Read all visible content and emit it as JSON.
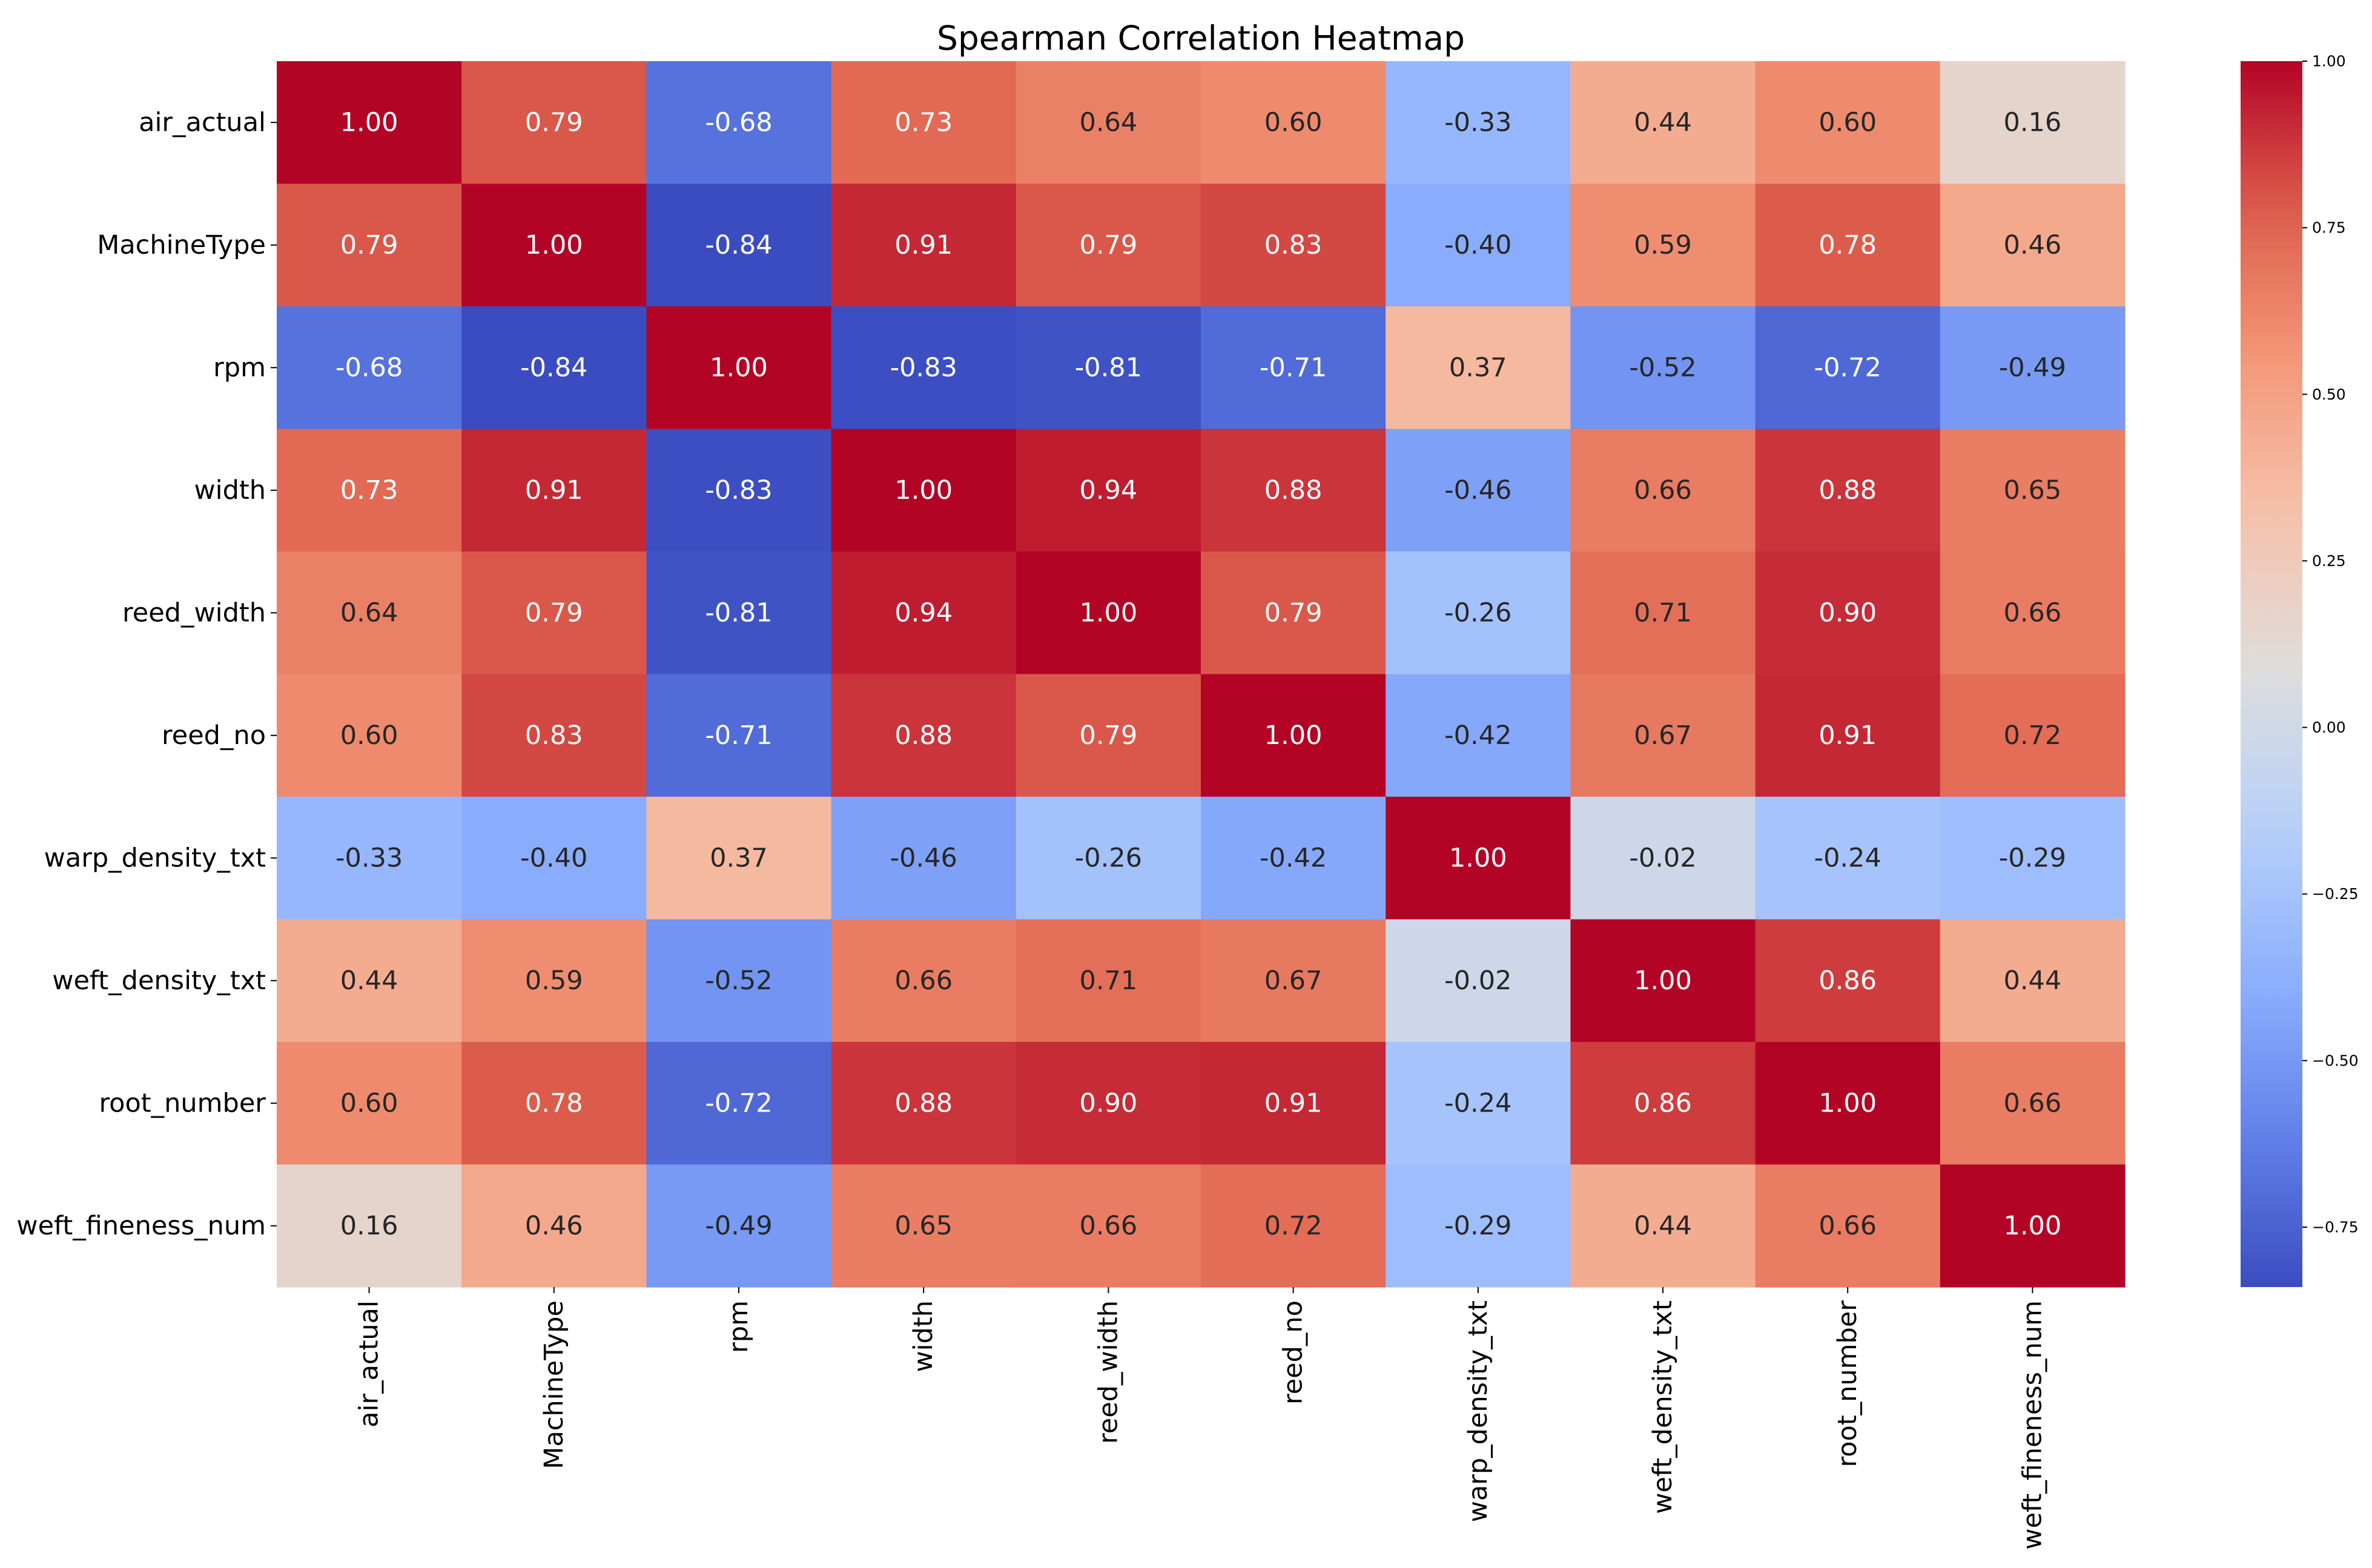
{
  "chart_data": {
    "type": "heatmap",
    "title": "Spearman Correlation Heatmap",
    "xlabel": "",
    "ylabel": "",
    "rows": [
      "air_actual",
      "MachineType",
      "rpm",
      "width",
      "reed_width",
      "reed_no",
      "warp_density_txt",
      "weft_density_txt",
      "root_number",
      "weft_fineness_num"
    ],
    "columns": [
      "air_actual",
      "MachineType",
      "rpm",
      "width",
      "reed_width",
      "reed_no",
      "warp_density_txt",
      "weft_density_txt",
      "root_number",
      "weft_fineness_num"
    ],
    "values": [
      [
        1.0,
        0.79,
        -0.68,
        0.73,
        0.64,
        0.6,
        -0.33,
        0.44,
        0.6,
        0.16
      ],
      [
        0.79,
        1.0,
        -0.84,
        0.91,
        0.79,
        0.83,
        -0.4,
        0.59,
        0.78,
        0.46
      ],
      [
        -0.68,
        -0.84,
        1.0,
        -0.83,
        -0.81,
        -0.71,
        0.37,
        -0.52,
        -0.72,
        -0.49
      ],
      [
        0.73,
        0.91,
        -0.83,
        1.0,
        0.94,
        0.88,
        -0.46,
        0.66,
        0.88,
        0.65
      ],
      [
        0.64,
        0.79,
        -0.81,
        0.94,
        1.0,
        0.79,
        -0.26,
        0.71,
        0.9,
        0.66
      ],
      [
        0.6,
        0.83,
        -0.71,
        0.88,
        0.79,
        1.0,
        -0.42,
        0.67,
        0.91,
        0.72
      ],
      [
        -0.33,
        -0.4,
        0.37,
        -0.46,
        -0.26,
        -0.42,
        1.0,
        -0.02,
        -0.24,
        -0.29
      ],
      [
        0.44,
        0.59,
        -0.52,
        0.66,
        0.71,
        0.67,
        -0.02,
        1.0,
        0.86,
        0.44
      ],
      [
        0.6,
        0.78,
        -0.72,
        0.88,
        0.9,
        0.91,
        -0.24,
        0.86,
        1.0,
        0.66
      ],
      [
        0.16,
        0.46,
        -0.49,
        0.65,
        0.66,
        0.72,
        -0.29,
        0.44,
        0.66,
        1.0
      ]
    ],
    "value_format": "0.00",
    "colormap": "coolwarm",
    "vmin": -0.84,
    "vmax": 1.0,
    "colorbar": {
      "ticks": [
        1.0,
        0.75,
        0.5,
        0.25,
        0.0,
        -0.25,
        -0.5,
        -0.75
      ],
      "tick_labels": [
        "1.00",
        "0.75",
        "0.50",
        "0.25",
        "0.00",
        "−0.25",
        "−0.50",
        "−0.75"
      ],
      "placement": "right"
    },
    "grid": false
  }
}
